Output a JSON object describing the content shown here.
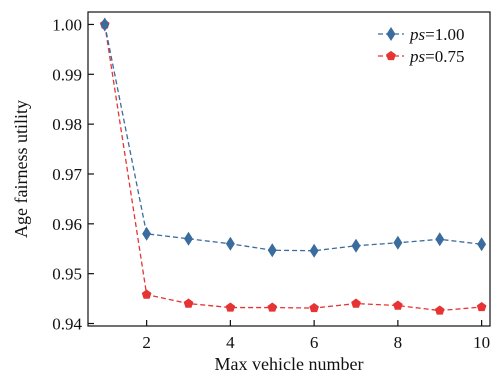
{
  "chart_data": {
    "type": "line",
    "title": "",
    "xlabel": "Max vehicle number",
    "ylabel": "Age fairness utility",
    "xlim": [
      0.6,
      10.2
    ],
    "ylim": [
      0.9395,
      1.0025
    ],
    "xticks": [
      2,
      4,
      6,
      8,
      10
    ],
    "xtick_labels": [
      "2",
      "4",
      "6",
      "8",
      "10"
    ],
    "yticks": [
      0.94,
      0.95,
      0.96,
      0.97,
      0.98,
      0.99,
      1.0
    ],
    "ytick_labels": [
      "0.94",
      "0.95",
      "0.96",
      "0.97",
      "0.98",
      "0.99",
      "1.00"
    ],
    "grid": false,
    "legend_position": "top-right",
    "x": [
      1,
      2,
      3,
      4,
      5,
      6,
      7,
      8,
      9,
      10
    ],
    "series": [
      {
        "name_prefix": "ps",
        "name_suffix": "=1.00",
        "color": "#3a6c9e",
        "marker": "diamond",
        "line_style": "dashed",
        "values": [
          1.0,
          0.958,
          0.957,
          0.956,
          0.9547,
          0.9546,
          0.9556,
          0.9562,
          0.9569,
          0.9559
        ]
      },
      {
        "name_prefix": "ps",
        "name_suffix": "=0.75",
        "color": "#e63434",
        "marker": "pentagon",
        "line_style": "dashed",
        "values": [
          1.0,
          0.9458,
          0.944,
          0.9432,
          0.9432,
          0.9431,
          0.944,
          0.9436,
          0.9426,
          0.9433
        ]
      }
    ]
  }
}
